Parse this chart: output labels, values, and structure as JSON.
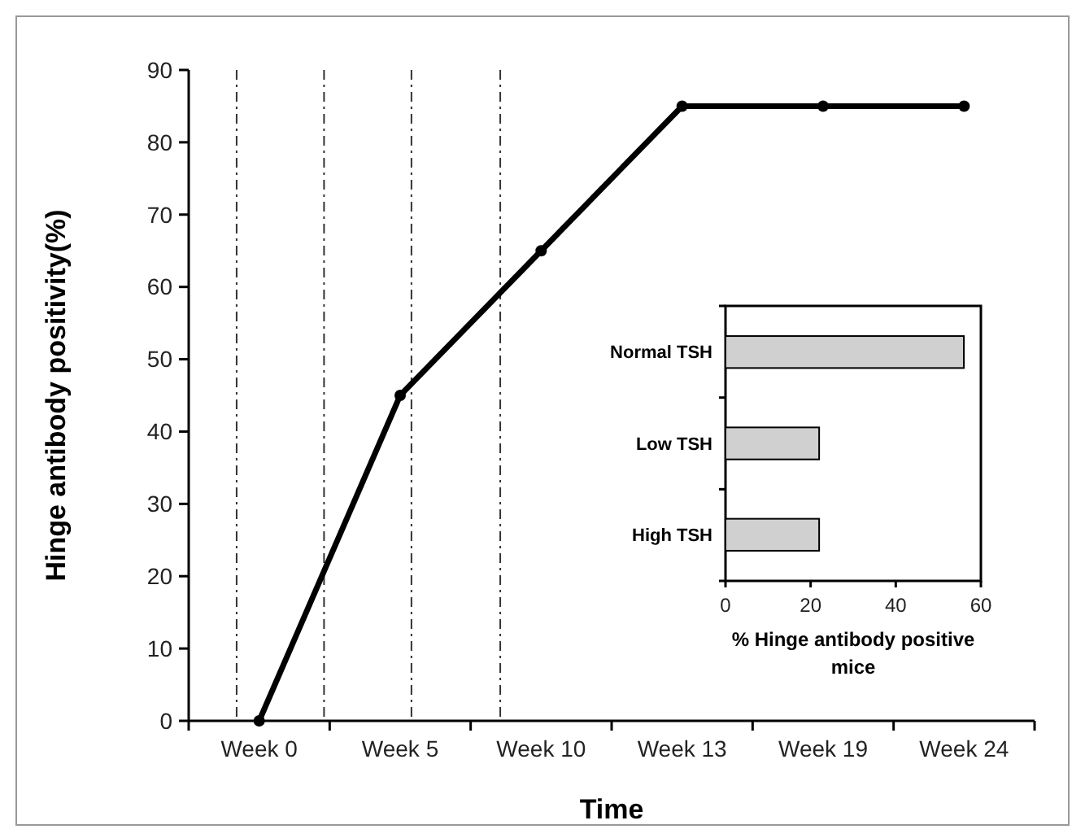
{
  "chart_data": [
    {
      "type": "line",
      "xlabel": "Time",
      "ylabel": "Hinge antibody positivity(%)",
      "categories": [
        "Week 0",
        "Week 5",
        "Week 10",
        "Week 13",
        "Week 19",
        "Week 24"
      ],
      "values": [
        0,
        45,
        65,
        85,
        85,
        85
      ],
      "color": "#000000",
      "marker": "circle",
      "line_style": "solid",
      "ylim": [
        0,
        90
      ],
      "yticks": [
        0,
        10,
        20,
        30,
        40,
        50,
        60,
        70,
        80,
        90
      ]
    },
    {
      "type": "bar",
      "orientation": "horizontal",
      "xlabel": "% Hinge antibody positive mice",
      "categories": [
        "Normal TSH",
        "Low TSH",
        "High TSH"
      ],
      "values": [
        56,
        22,
        22
      ],
      "color": "#d0d0d0",
      "xlim": [
        0,
        60
      ],
      "xticks": [
        0,
        20,
        40,
        60
      ]
    }
  ]
}
